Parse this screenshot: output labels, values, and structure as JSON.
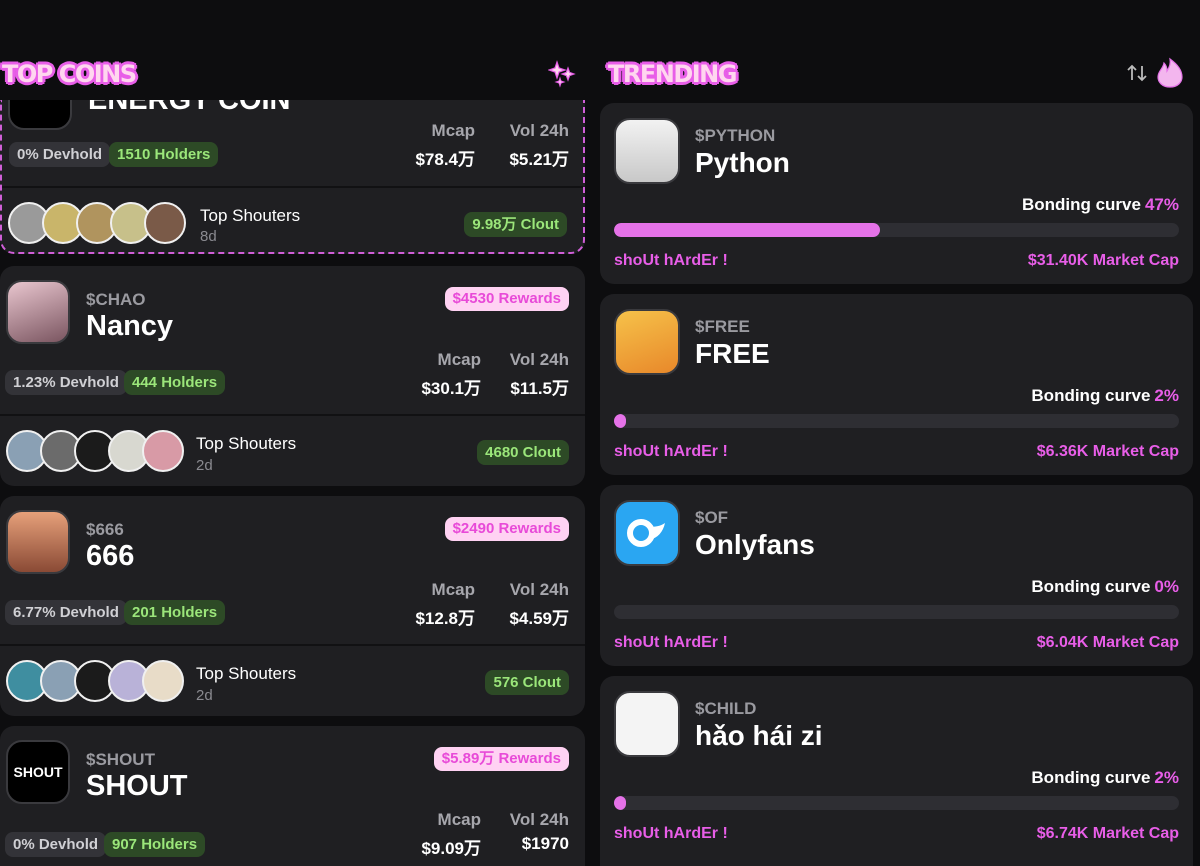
{
  "headers": {
    "top_coins": "TOP COINS",
    "trending": "TRENDING"
  },
  "labels": {
    "mcap": "Mcap",
    "vol": "Vol 24h",
    "top_shouters": "Top Shouters",
    "bonding": "Bonding curve",
    "shout": "shoUt hArdEr !"
  },
  "top_coins": [
    {
      "name": "ENERGY COIN",
      "devhold": "0% Devhold",
      "holders": "1510 Holders",
      "mcap": "$78.4万",
      "vol": "$5.21万",
      "age": "8d",
      "clout": "9.98万 Clout"
    },
    {
      "ticker": "$CHAO",
      "name": "Nancy",
      "rewards": "$4530 Rewards",
      "devhold": "1.23% Devhold",
      "holders": "444 Holders",
      "mcap": "$30.1万",
      "vol": "$11.5万",
      "age": "2d",
      "clout": "4680 Clout"
    },
    {
      "ticker": "$666",
      "name": "666",
      "rewards": "$2490 Rewards",
      "devhold": "6.77% Devhold",
      "holders": "201 Holders",
      "mcap": "$12.8万",
      "vol": "$4.59万",
      "age": "2d",
      "clout": "576 Clout"
    },
    {
      "ticker": "$SHOUT",
      "name": "SHOUT",
      "logo_text": "SHOUT",
      "rewards": "$5.89万 Rewards",
      "devhold": "0% Devhold",
      "holders": "907 Holders",
      "mcap": "$9.09万",
      "vol": "$1970"
    }
  ],
  "trending": [
    {
      "ticker": "$PYTHON",
      "name": "Python",
      "bonding_pct": "47%",
      "progress": 0.47,
      "market_cap": "$31.40K Market Cap"
    },
    {
      "ticker": "$FREE",
      "name": "FREE",
      "bonding_pct": "2%",
      "progress": 0.02,
      "market_cap": "$6.36K Market Cap"
    },
    {
      "ticker": "$OF",
      "name": "Onlyfans",
      "bonding_pct": "0%",
      "progress": 0.0,
      "market_cap": "$6.04K Market Cap"
    },
    {
      "ticker": "$CHILD",
      "name": "hǎo hái zi",
      "bonding_pct": "2%",
      "progress": 0.02,
      "market_cap": "$6.74K Market Cap"
    }
  ],
  "colors": {
    "accent": "#e85ee8",
    "card": "#1f1f22",
    "green": "#9be67a"
  },
  "icons": {
    "header_left": "sparkle-icon",
    "header_sort": "sort-icon",
    "header_flame": "flame-icon"
  }
}
